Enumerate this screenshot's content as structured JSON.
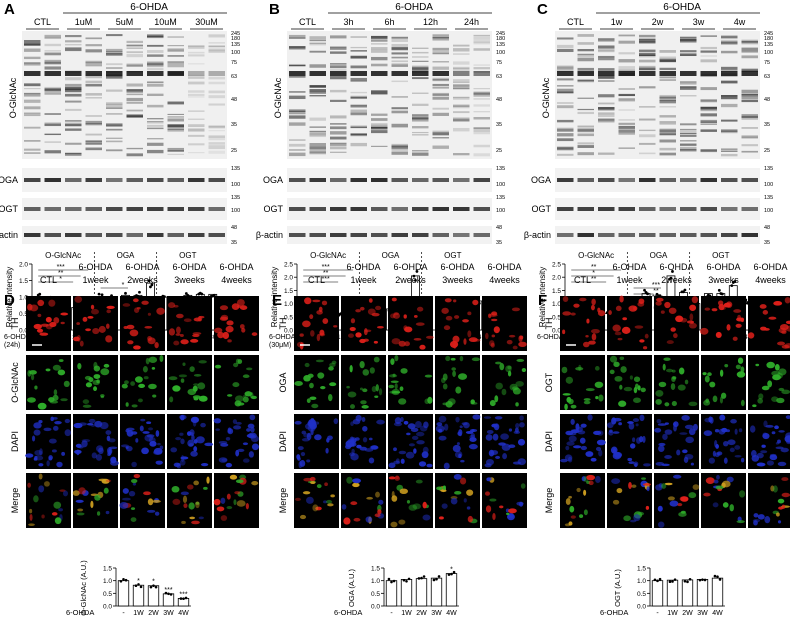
{
  "panels": [
    {
      "letter": "A",
      "treatment_header": "6-OHDA",
      "lane_labels": [
        "CTL",
        "1uM",
        "5uM",
        "10uM",
        "30uM"
      ],
      "blot_labels": [
        "O-GlcNAc",
        "OGA",
        "OGT",
        "β-actin"
      ],
      "markers_main": [
        "245",
        "180",
        "135",
        "100",
        "75",
        "63",
        "48",
        "35",
        "25"
      ],
      "markers_oga": [
        "135",
        "100"
      ],
      "markers_ogt": [
        "135",
        "100"
      ],
      "markers_actin": [
        "48",
        "35"
      ],
      "chart_data": {
        "type": "bar",
        "ylabel": "Relative intensity",
        "ylim": [
          0,
          2.0
        ],
        "yticks": [
          "0.0",
          "0.5",
          "1.0",
          "1.5",
          "2.0"
        ],
        "group_labels": [
          "O-GlcNAc",
          "OGA",
          "OGT"
        ],
        "x_row_label": "6-OHDA",
        "x_row_sublabel": "(24h)",
        "x_ticks": [
          "-",
          "1",
          "5",
          "10",
          "30",
          "-",
          "1",
          "5",
          "10",
          "30",
          "-",
          "1",
          "5",
          "10",
          "30"
        ],
        "x_unit": "μM",
        "values": [
          1.0,
          0.93,
          0.82,
          0.68,
          0.32,
          1.0,
          0.95,
          1.05,
          1.05,
          1.42,
          1.0,
          0.97,
          1.05,
          1.08,
          1.08
        ],
        "significance": [
          "***",
          "**",
          "*",
          "*"
        ]
      }
    },
    {
      "letter": "B",
      "treatment_header": "6-OHDA",
      "lane_labels": [
        "CTL",
        "3h",
        "6h",
        "12h",
        "24h"
      ],
      "blot_labels": [
        "O-GlcNAc",
        "OGA",
        "OGT",
        "β-actin"
      ],
      "markers_main": [
        "245",
        "180",
        "135",
        "100",
        "75",
        "63",
        "48",
        "35",
        "25"
      ],
      "markers_oga": [
        "135",
        "100"
      ],
      "markers_ogt": [
        "135",
        "100"
      ],
      "markers_actin": [
        "48",
        "35"
      ],
      "chart_data": {
        "type": "bar",
        "ylabel": "Relative intensity",
        "ylim": [
          0,
          2.5
        ],
        "yticks": [
          "0.0",
          "0.5",
          "1.0",
          "1.5",
          "2.0",
          "2.5"
        ],
        "group_labels": [
          "O-GlcNAc",
          "OGA",
          "OGT"
        ],
        "x_row_label": "6-OHDA",
        "x_row_sublabel": "(30μM)",
        "x_ticks": [
          "-",
          "3",
          "6",
          "12",
          "24",
          "-",
          "3",
          "6",
          "12",
          "24",
          "-",
          "3",
          "6",
          "12",
          "24"
        ],
        "x_unit": "h",
        "values": [
          1.0,
          0.95,
          0.92,
          0.62,
          0.42,
          1.0,
          0.7,
          0.8,
          1.1,
          2.05,
          1.0,
          0.9,
          1.05,
          0.82,
          1.1
        ],
        "significance": [
          "***",
          "**",
          "***"
        ]
      }
    },
    {
      "letter": "C",
      "treatment_header": "6-OHDA",
      "lane_labels": [
        "CTL",
        "1w",
        "2w",
        "3w",
        "4w"
      ],
      "blot_labels": [
        "O-GlcNAc",
        "OGA",
        "OGT",
        "β-actin"
      ],
      "markers_main": [
        "245",
        "180",
        "135",
        "100",
        "75",
        "63",
        "48",
        "35",
        "25"
      ],
      "markers_oga": [
        "135",
        "100"
      ],
      "markers_ogt": [
        "135",
        "100"
      ],
      "markers_actin": [
        "48",
        "35"
      ],
      "chart_data": {
        "type": "bar",
        "ylabel": "Relative intensity",
        "ylim": [
          0,
          2.5
        ],
        "yticks": [
          "0.0",
          "0.5",
          "1.0",
          "1.5",
          "2.0",
          "2.5"
        ],
        "group_labels": [
          "O-GlcNAc",
          "OGA",
          "OGT"
        ],
        "x_row_label": "6-OHDA",
        "x_row_sublabel": "",
        "x_ticks": [
          "-",
          "1",
          "2",
          "3",
          "4",
          "-",
          "1",
          "2",
          "3",
          "4",
          "-",
          "1",
          "2",
          "3",
          "4"
        ],
        "x_unit": "week",
        "values": [
          1.0,
          0.88,
          0.78,
          0.62,
          0.42,
          1.0,
          1.38,
          1.28,
          2.05,
          1.42,
          1.0,
          1.38,
          1.38,
          1.68,
          1.08
        ],
        "significance": [
          "**",
          "*",
          "**",
          "***",
          "**",
          "***",
          "*",
          "**"
        ]
      }
    }
  ],
  "if_panels": [
    {
      "letter": "D",
      "col_labels": [
        [
          "CTL",
          ""
        ],
        [
          "6-OHDA",
          "1week"
        ],
        [
          "6-OHDA",
          "2weeks"
        ],
        [
          "6-OHDA",
          "3weeks"
        ],
        [
          "6-OHDA",
          "4weeks"
        ]
      ],
      "row_labels": [
        "TH",
        "O-GlcNAc",
        "DAPI",
        "Merge"
      ],
      "chart_data": {
        "type": "bar",
        "ylabel": "O-GlcNAc (A.U.)",
        "ylim": [
          0,
          1.5
        ],
        "yticks": [
          "0.0",
          "0.5",
          "1.0",
          "1.5"
        ],
        "x_row_label": "6-OHDA",
        "categories": [
          "-",
          "1W",
          "2W",
          "3W",
          "4W"
        ],
        "values": [
          1.0,
          0.82,
          0.8,
          0.48,
          0.3
        ],
        "significance": [
          "",
          "*",
          "*",
          "***",
          "***"
        ]
      }
    },
    {
      "letter": "E",
      "col_labels": [
        [
          "CTL",
          ""
        ],
        [
          "6-OHDA",
          "1week"
        ],
        [
          "6-OHDA",
          "2weeks"
        ],
        [
          "6-OHDA",
          "3weeks"
        ],
        [
          "6-OHDA",
          "4weeks"
        ]
      ],
      "row_labels": [
        "TH",
        "OGA",
        "DAPI",
        "Merge"
      ],
      "chart_data": {
        "type": "bar",
        "ylabel": "OGA (A.U.)",
        "ylim": [
          0,
          1.5
        ],
        "yticks": [
          "0.0",
          "0.5",
          "1.0",
          "1.5"
        ],
        "x_row_label": "6-OHDA",
        "categories": [
          "-",
          "1W",
          "2W",
          "3W",
          "4W"
        ],
        "values": [
          1.0,
          1.05,
          1.08,
          1.1,
          1.28
        ],
        "significance": [
          "",
          "",
          "",
          "",
          "*"
        ]
      }
    },
    {
      "letter": "F",
      "col_labels": [
        [
          "CTL",
          ""
        ],
        [
          "6-OHDA",
          "1week"
        ],
        [
          "6-OHDA",
          "2weeks"
        ],
        [
          "6-OHDA",
          "3weeks"
        ],
        [
          "6-OHDA",
          "4weeks"
        ]
      ],
      "row_labels": [
        "TH",
        "OGT",
        "DAPI",
        "Merge"
      ],
      "chart_data": {
        "type": "bar",
        "ylabel": "OGT (A.U.)",
        "ylim": [
          0,
          1.5
        ],
        "yticks": [
          "0.0",
          "0.5",
          "1.0",
          "1.5"
        ],
        "x_row_label": "6-OHDA",
        "categories": [
          "-",
          "1W",
          "2W",
          "3W",
          "4W"
        ],
        "values": [
          1.0,
          1.02,
          1.03,
          1.05,
          1.1
        ],
        "significance": [
          "",
          "",
          "",
          "",
          ""
        ]
      }
    }
  ],
  "colors": {
    "th": "#e0201a",
    "green": "#2fae2a",
    "dapi": "#2030c8",
    "merge_bg": "#2a1020"
  }
}
